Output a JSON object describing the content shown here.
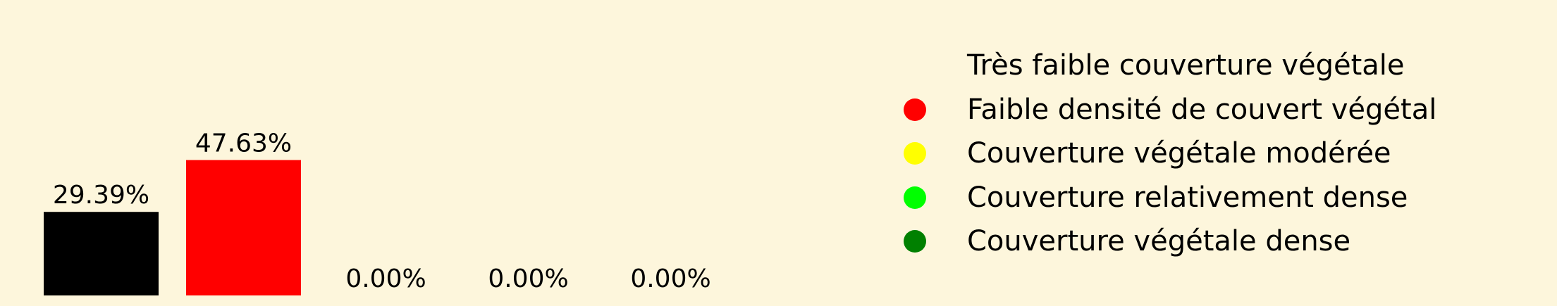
{
  "chart_data": {
    "type": "bar",
    "categories": [
      "Très faible couverture végétale",
      "Faible densité de couvert végétal",
      "Couverture végétale modérée",
      "Couverture relativement dense",
      "Couverture végétale dense"
    ],
    "values": [
      29.39,
      47.63,
      0.0,
      0.0,
      0.0
    ],
    "value_labels": [
      "29.39%",
      "47.63%",
      "0.00%",
      "0.00%",
      "0.00%"
    ],
    "colors": [
      "#000000",
      "#ff0000",
      "#ffff00",
      "#00ff00",
      "#008000"
    ],
    "title": "",
    "xlabel": "",
    "ylabel": "",
    "ylim": [
      0,
      100
    ],
    "grid": false,
    "legend_position": "right"
  },
  "background_color": "#fdf6dc"
}
